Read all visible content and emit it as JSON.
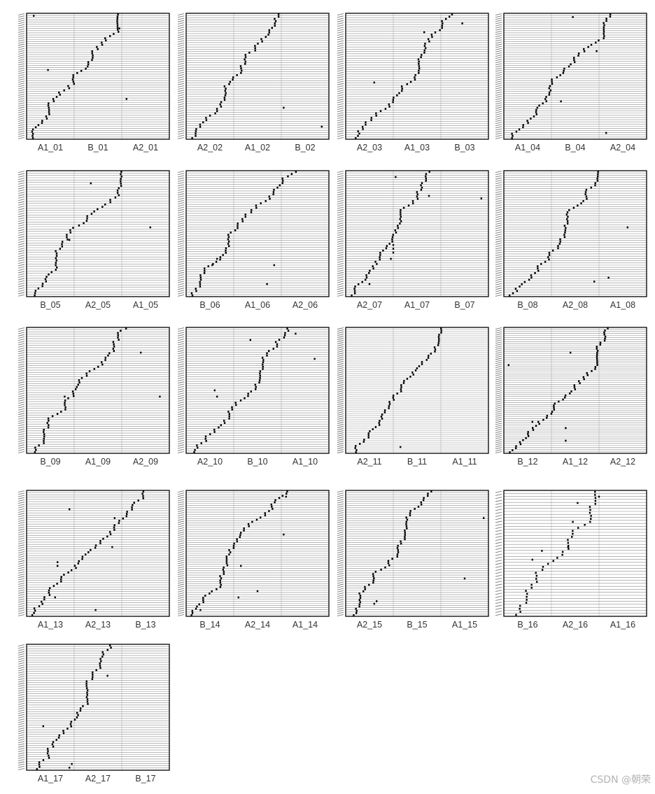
{
  "colors": {
    "background": "#ffffff",
    "panel_border": "#000000",
    "row_line": "#8c8c8c",
    "column_line": "#c8c8c8",
    "dots": "#000000",
    "label": "#333333",
    "watermark": "#b3b3b3"
  },
  "watermark": "CSDN @朝荣",
  "chart_data": [
    {
      "type": "scatter",
      "panel": "01",
      "columns": [
        "A1_01",
        "B_01",
        "A2_01"
      ],
      "rows": 58,
      "outliers": [
        [
          0.45,
          0.55
        ],
        [
          1.95,
          0.88
        ],
        [
          2.1,
          0.32
        ],
        [
          0.15,
          0.98
        ]
      ]
    },
    {
      "type": "scatter",
      "panel": "02",
      "columns": [
        "A2_02",
        "A1_02",
        "B_02"
      ],
      "rows": 56,
      "outliers": [
        [
          2.05,
          0.25
        ],
        [
          2.85,
          0.1
        ]
      ]
    },
    {
      "type": "scatter",
      "panel": "03",
      "columns": [
        "A2_03",
        "A1_03",
        "B_03"
      ],
      "rows": 56,
      "outliers": [
        [
          0.6,
          0.45
        ],
        [
          1.65,
          0.85
        ],
        [
          2.45,
          0.92
        ]
      ]
    },
    {
      "type": "scatter",
      "panel": "04",
      "columns": [
        "A1_04",
        "B_04",
        "A2_04"
      ],
      "rows": 58,
      "outliers": [
        [
          1.2,
          0.3
        ],
        [
          1.45,
          0.97
        ],
        [
          1.95,
          0.7
        ],
        [
          2.15,
          0.05
        ]
      ]
    },
    {
      "type": "scatter",
      "panel": "05",
      "columns": [
        "B_05",
        "A2_05",
        "A1_05"
      ],
      "rows": 54,
      "outliers": [
        [
          0.9,
          0.45
        ],
        [
          1.35,
          0.9
        ],
        [
          2.6,
          0.55
        ]
      ]
    },
    {
      "type": "scatter",
      "panel": "06",
      "columns": [
        "B_06",
        "A1_06",
        "A2_06"
      ],
      "rows": 56,
      "outliers": [
        [
          0.55,
          0.25
        ],
        [
          0.65,
          0.3
        ],
        [
          1.7,
          0.1
        ],
        [
          1.85,
          0.25
        ]
      ]
    },
    {
      "type": "scatter",
      "panel": "07",
      "columns": [
        "A2_07",
        "A1_07",
        "B_07"
      ],
      "rows": 56,
      "outliers": [
        [
          0.5,
          0.1
        ],
        [
          0.95,
          0.3
        ],
        [
          1.0,
          0.35
        ],
        [
          1.0,
          0.38
        ],
        [
          1.0,
          0.41
        ],
        [
          1.05,
          0.95
        ],
        [
          1.75,
          0.8
        ],
        [
          2.85,
          0.78
        ]
      ]
    },
    {
      "type": "scatter",
      "panel": "08",
      "columns": [
        "B_08",
        "A2_08",
        "A1_08"
      ],
      "rows": 56,
      "outliers": [
        [
          1.9,
          0.12
        ],
        [
          2.2,
          0.15
        ],
        [
          2.6,
          0.55
        ]
      ]
    },
    {
      "type": "scatter",
      "panel": "09",
      "columns": [
        "B_09",
        "A1_09",
        "A2_09"
      ],
      "rows": 56,
      "outliers": [
        [
          0.8,
          0.45
        ],
        [
          2.4,
          0.8
        ],
        [
          2.8,
          0.45
        ]
      ]
    },
    {
      "type": "scatter",
      "panel": "10",
      "columns": [
        "A2_10",
        "B_10",
        "A1_10"
      ],
      "rows": 56,
      "outliers": [
        [
          0.6,
          0.5
        ],
        [
          0.65,
          0.45
        ],
        [
          1.35,
          0.9
        ],
        [
          2.3,
          0.95
        ],
        [
          2.7,
          0.75
        ]
      ]
    },
    {
      "type": "scatter",
      "panel": "11",
      "columns": [
        "A2_11",
        "B_11",
        "A1_11"
      ],
      "rows": 60,
      "outliers": [
        [
          1.15,
          0.05
        ]
      ]
    },
    {
      "type": "scatter",
      "panel": "12",
      "columns": [
        "B_12",
        "A1_12",
        "A2_12"
      ],
      "rows": 62,
      "outliers": [
        [
          0.1,
          0.7
        ],
        [
          0.6,
          0.25
        ],
        [
          1.3,
          0.1
        ],
        [
          1.3,
          0.2
        ],
        [
          1.4,
          0.8
        ]
      ]
    },
    {
      "type": "scatter",
      "panel": "13",
      "columns": [
        "A1_13",
        "A2_13",
        "B_13"
      ],
      "rows": 56,
      "outliers": [
        [
          0.6,
          0.15
        ],
        [
          0.65,
          0.4
        ],
        [
          0.65,
          0.43
        ],
        [
          0.9,
          0.85
        ],
        [
          1.45,
          0.05
        ],
        [
          1.8,
          0.55
        ],
        [
          1.85,
          0.78
        ]
      ]
    },
    {
      "type": "scatter",
      "panel": "14",
      "columns": [
        "B_14",
        "A2_14",
        "A1_14"
      ],
      "rows": 58,
      "outliers": [
        [
          0.3,
          0.05
        ],
        [
          1.1,
          0.15
        ],
        [
          1.15,
          0.4
        ],
        [
          1.5,
          0.2
        ],
        [
          2.05,
          0.65
        ],
        [
          2.1,
          0.95
        ]
      ]
    },
    {
      "type": "scatter",
      "panel": "15",
      "columns": [
        "A2_15",
        "B_15",
        "A1_15"
      ],
      "rows": 58,
      "outliers": [
        [
          0.6,
          0.1
        ],
        [
          0.65,
          0.12
        ],
        [
          2.5,
          0.3
        ],
        [
          2.9,
          0.78
        ]
      ]
    },
    {
      "type": "scatter",
      "panel": "16",
      "columns": [
        "B_16",
        "A2_16",
        "A1_16"
      ],
      "rows": 42,
      "outliers": [
        [
          0.6,
          0.45
        ],
        [
          0.8,
          0.52
        ],
        [
          1.35,
          0.55
        ],
        [
          1.45,
          0.75
        ],
        [
          1.55,
          0.9
        ],
        [
          2.0,
          0.95
        ]
      ]
    },
    {
      "type": "scatter",
      "panel": "17",
      "columns": [
        "A1_17",
        "A2_17",
        "B_17"
      ],
      "rows": 56,
      "outliers": [
        [
          0.35,
          0.35
        ],
        [
          0.9,
          0.02
        ],
        [
          0.95,
          0.05
        ],
        [
          1.7,
          0.75
        ]
      ]
    }
  ]
}
